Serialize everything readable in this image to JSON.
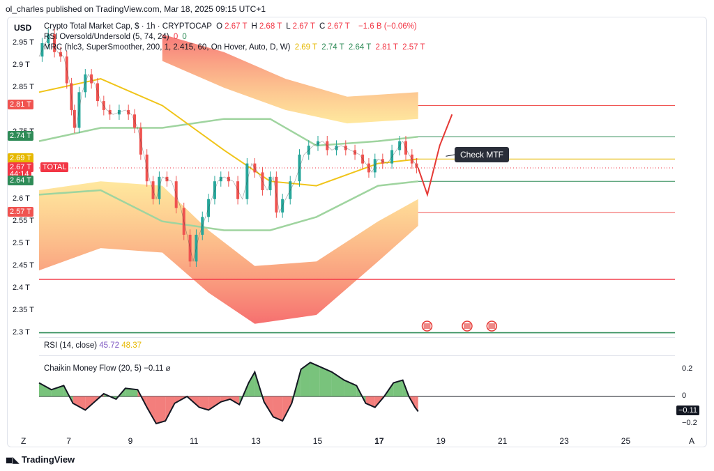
{
  "header": {
    "published_line": "ol_charles published on TradingView.com, Mar 18, 2025 09:15 UTC+1",
    "currency": "USD"
  },
  "legend": {
    "symbol": "Crypto Total Market Cap, $ · 1h · CRYPTOCAP",
    "ohlc": [
      {
        "k": "O",
        "v": "2.67 T"
      },
      {
        "k": "H",
        "v": "2.68 T"
      },
      {
        "k": "L",
        "v": "2.67 T"
      },
      {
        "k": "C",
        "v": "2.67 T"
      }
    ],
    "change": "−1.6 B (−0.06%)",
    "rsi_os": "RSI Oversold/Undersold (5, 74, 24)",
    "rsi_os_vals": [
      "0",
      "0"
    ],
    "mrc": "MRC (hlc3, SuperSmoother, 200, 1, 2.415, 60, On Hover, Auto, D, W)",
    "mrc_vals": [
      "2.69 T",
      "2.74 T",
      "2.64 T",
      "2.81 T",
      "2.57 T"
    ]
  },
  "price_axis": {
    "ticks": [
      "2.95 T",
      "2.9 T",
      "2.85 T",
      "2.75 T",
      "2.6 T",
      "2.55 T",
      "2.5 T",
      "2.45 T",
      "2.4 T",
      "2.35 T",
      "2.3 T"
    ],
    "tick_values": [
      2.95,
      2.9,
      2.85,
      2.75,
      2.6,
      2.55,
      2.5,
      2.45,
      2.4,
      2.35,
      2.3
    ],
    "badges": [
      {
        "text": "2.81 T",
        "value": 2.81,
        "color": "#f05350"
      },
      {
        "text": "2.74 T",
        "value": 2.74,
        "color": "#2e8b57"
      },
      {
        "text": "2.69 T",
        "value": 2.69,
        "color": "#e6b800"
      },
      {
        "text": "2.67 T",
        "value": 2.67,
        "color": "#f23645"
      },
      {
        "text": "44:14",
        "value": 2.655,
        "color": "#f23645"
      },
      {
        "text": "2.64 T",
        "value": 2.64,
        "color": "#2e8b57"
      },
      {
        "text": "2.57 T",
        "value": 2.57,
        "color": "#f05350"
      }
    ],
    "total_label": "TOTAL"
  },
  "annotation": "Check MTF",
  "rsi_legend": {
    "label": "RSI (14, close)",
    "v1": "45.72",
    "v2": "48.37"
  },
  "cmf": {
    "label": "Chaikin Money Flow (20, 5)",
    "value": "−0.11",
    "icon": "⌀",
    "axis": [
      "0.2",
      "0",
      "−0.2"
    ],
    "axis_values": [
      0.2,
      0,
      -0.2
    ],
    "badge": "−0.11"
  },
  "x_axis": {
    "left": "Z",
    "labels": [
      "7",
      "9",
      "11",
      "13",
      "15",
      "17",
      "19",
      "21",
      "23",
      "25"
    ],
    "bold": "17",
    "right": "A"
  },
  "footer": "TradingView",
  "colors": {
    "red": "#f23645",
    "green": "#2e8b57",
    "yellow": "#f0c419",
    "up": "#26a69a",
    "down": "#ef5350"
  },
  "chart_data": {
    "type": "candlestick",
    "title": "Crypto Total Market Cap, $ · 1h · CRYPTOCAP",
    "ylim": [
      2.29,
      3.0
    ],
    "x_day_range": [
      6,
      27
    ],
    "price_path": [
      [
        6.0,
        2.92
      ],
      [
        6.2,
        2.95
      ],
      [
        6.4,
        2.97
      ],
      [
        6.6,
        2.93
      ],
      [
        6.8,
        2.92
      ],
      [
        7.0,
        2.86
      ],
      [
        7.1,
        2.8
      ],
      [
        7.2,
        2.76
      ],
      [
        7.4,
        2.84
      ],
      [
        7.6,
        2.88
      ],
      [
        7.8,
        2.86
      ],
      [
        8.0,
        2.82
      ],
      [
        8.2,
        2.8
      ],
      [
        8.4,
        2.79
      ],
      [
        8.8,
        2.8
      ],
      [
        9.0,
        2.79
      ],
      [
        9.2,
        2.76
      ],
      [
        9.4,
        2.7
      ],
      [
        9.6,
        2.64
      ],
      [
        9.8,
        2.6
      ],
      [
        10.0,
        2.65
      ],
      [
        10.3,
        2.64
      ],
      [
        10.6,
        2.58
      ],
      [
        10.8,
        2.52
      ],
      [
        11.0,
        2.46
      ],
      [
        11.2,
        2.52
      ],
      [
        11.4,
        2.56
      ],
      [
        11.6,
        2.6
      ],
      [
        11.8,
        2.64
      ],
      [
        12.0,
        2.65
      ],
      [
        12.3,
        2.64
      ],
      [
        12.6,
        2.6
      ],
      [
        12.9,
        2.68
      ],
      [
        13.1,
        2.66
      ],
      [
        13.4,
        2.62
      ],
      [
        13.6,
        2.65
      ],
      [
        13.8,
        2.57
      ],
      [
        14.0,
        2.6
      ],
      [
        14.3,
        2.64
      ],
      [
        14.6,
        2.7
      ],
      [
        14.9,
        2.72
      ],
      [
        15.2,
        2.73
      ],
      [
        15.5,
        2.71
      ],
      [
        15.8,
        2.72
      ],
      [
        16.1,
        2.71
      ],
      [
        16.4,
        2.7
      ],
      [
        16.6,
        2.68
      ],
      [
        16.8,
        2.66
      ],
      [
        17.0,
        2.69
      ],
      [
        17.3,
        2.68
      ],
      [
        17.6,
        2.71
      ],
      [
        17.8,
        2.73
      ],
      [
        18.0,
        2.7
      ],
      [
        18.2,
        2.68
      ],
      [
        18.3,
        2.67
      ]
    ],
    "projection": [
      [
        18.3,
        2.67
      ],
      [
        18.6,
        2.61
      ],
      [
        19.0,
        2.72
      ],
      [
        19.4,
        2.79
      ]
    ],
    "mrc_mean_line": [
      [
        6.0,
        2.84
      ],
      [
        8.0,
        2.87
      ],
      [
        10.0,
        2.81
      ],
      [
        12.0,
        2.71
      ],
      [
        13.5,
        2.64
      ],
      [
        15.0,
        2.63
      ],
      [
        17.0,
        2.68
      ],
      [
        18.3,
        2.69
      ]
    ],
    "mrc_inner_upper": [
      [
        6.0,
        2.73
      ],
      [
        8.0,
        2.76
      ],
      [
        10.0,
        2.76
      ],
      [
        12.0,
        2.78
      ],
      [
        13.5,
        2.78
      ],
      [
        15.0,
        2.72
      ],
      [
        17.0,
        2.73
      ],
      [
        18.3,
        2.74
      ]
    ],
    "mrc_inner_lower": [
      [
        6.0,
        2.61
      ],
      [
        8.0,
        2.62
      ],
      [
        10.0,
        2.55
      ],
      [
        12.0,
        2.53
      ],
      [
        13.5,
        2.53
      ],
      [
        15.0,
        2.56
      ],
      [
        17.0,
        2.63
      ],
      [
        18.3,
        2.64
      ]
    ],
    "upper_band_top": [
      [
        10.0,
        2.97
      ],
      [
        12.0,
        2.93
      ],
      [
        14.0,
        2.87
      ],
      [
        16.0,
        2.83
      ],
      [
        18.3,
        2.84
      ]
    ],
    "upper_band_bottom": [
      [
        10.0,
        2.91
      ],
      [
        12.0,
        2.85
      ],
      [
        14.0,
        2.8
      ],
      [
        16.0,
        2.77
      ],
      [
        18.3,
        2.78
      ]
    ],
    "lower_band_top": [
      [
        6.0,
        2.62
      ],
      [
        8.0,
        2.64
      ],
      [
        10.0,
        2.63
      ],
      [
        11.5,
        2.53
      ],
      [
        13.0,
        2.45
      ],
      [
        15.0,
        2.46
      ],
      [
        17.0,
        2.55
      ],
      [
        18.3,
        2.6
      ]
    ],
    "lower_band_bottom": [
      [
        6.0,
        2.44
      ],
      [
        8.0,
        2.49
      ],
      [
        10.0,
        2.48
      ],
      [
        11.5,
        2.39
      ],
      [
        13.0,
        2.32
      ],
      [
        15.0,
        2.34
      ],
      [
        17.0,
        2.46
      ],
      [
        18.3,
        2.54
      ]
    ],
    "horizontal_levels": [
      {
        "value": 2.81,
        "color": "#f05350",
        "from_day": 18.3
      },
      {
        "value": 2.74,
        "color": "#2e8b57",
        "from_day": 18.3
      },
      {
        "value": 2.69,
        "color": "#e6b800",
        "from_day": 18.3
      },
      {
        "value": 2.64,
        "color": "#2e8b57",
        "from_day": 18.3
      },
      {
        "value": 2.57,
        "color": "#f05350",
        "from_day": 18.3
      },
      {
        "value": 2.42,
        "color": "#f23645",
        "from_day": 6.0
      },
      {
        "value": 2.3,
        "color": "#2e8b57",
        "from_day": 6.0
      }
    ],
    "event_markers_days": [
      18.5,
      19.8,
      20.6
    ],
    "cmf_series": [
      [
        6.0,
        0.1
      ],
      [
        6.4,
        0.05
      ],
      [
        6.8,
        0.08
      ],
      [
        7.1,
        -0.05
      ],
      [
        7.5,
        -0.1
      ],
      [
        7.8,
        -0.04
      ],
      [
        8.1,
        0.02
      ],
      [
        8.5,
        -0.02
      ],
      [
        8.8,
        0.06
      ],
      [
        9.2,
        0.05
      ],
      [
        9.5,
        -0.08
      ],
      [
        9.8,
        -0.2
      ],
      [
        10.1,
        -0.18
      ],
      [
        10.4,
        -0.05
      ],
      [
        10.8,
        0.0
      ],
      [
        11.2,
        -0.08
      ],
      [
        11.5,
        -0.1
      ],
      [
        11.9,
        -0.04
      ],
      [
        12.2,
        -0.02
      ],
      [
        12.5,
        -0.06
      ],
      [
        12.8,
        0.1
      ],
      [
        13.0,
        0.18
      ],
      [
        13.3,
        -0.04
      ],
      [
        13.6,
        -0.15
      ],
      [
        13.9,
        -0.18
      ],
      [
        14.2,
        -0.05
      ],
      [
        14.5,
        0.2
      ],
      [
        14.8,
        0.25
      ],
      [
        15.1,
        0.22
      ],
      [
        15.5,
        0.18
      ],
      [
        15.9,
        0.12
      ],
      [
        16.3,
        0.08
      ],
      [
        16.6,
        -0.05
      ],
      [
        16.9,
        -0.08
      ],
      [
        17.2,
        0.0
      ],
      [
        17.5,
        0.1
      ],
      [
        17.8,
        0.12
      ],
      [
        18.0,
        0.0
      ],
      [
        18.2,
        -0.08
      ],
      [
        18.3,
        -0.11
      ]
    ],
    "cmf_ylim": [
      -0.3,
      0.3
    ]
  }
}
